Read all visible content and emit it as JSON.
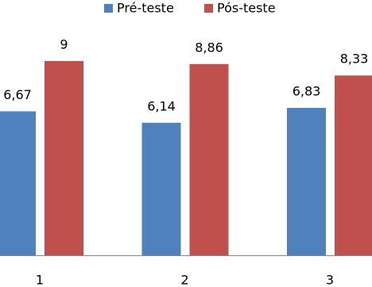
{
  "chart_data": {
    "type": "bar",
    "categories": [
      "1",
      "2",
      "3"
    ],
    "series": [
      {
        "name": "Pré-teste",
        "color": "#4f81bd",
        "values": [
          6.67,
          6.14,
          6.83
        ],
        "value_labels": [
          "6,67",
          "6,14",
          "6,83"
        ]
      },
      {
        "name": "Pós-teste",
        "color": "#c0504d",
        "values": [
          9,
          8.86,
          8.33
        ],
        "value_labels": [
          "9",
          "8,86",
          "8,33"
        ]
      }
    ]
  }
}
